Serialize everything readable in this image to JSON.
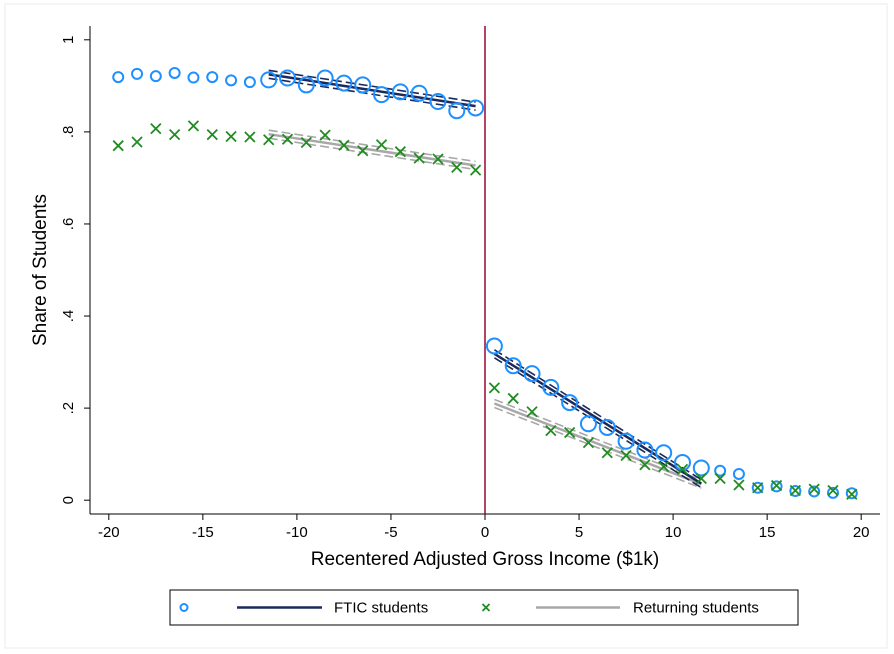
{
  "chart_data": {
    "type": "scatter",
    "title": "",
    "xlabel": "Recentered Adjusted Gross Income ($1k)",
    "ylabel": "Share of Students",
    "xlim": [
      -21,
      21
    ],
    "ylim": [
      -0.03,
      1.03
    ],
    "x_ticks": [
      -20,
      -15,
      -10,
      -5,
      0,
      5,
      10,
      15,
      20
    ],
    "x_tick_labels": [
      "-20",
      "-15",
      "-10",
      "-5",
      "0",
      "5",
      "10",
      "15",
      "20"
    ],
    "y_ticks": [
      0,
      0.2,
      0.4,
      0.6,
      0.8,
      1
    ],
    "y_tick_labels": [
      "0",
      ".2",
      ".4",
      ".6",
      ".8",
      "1"
    ],
    "grid": false,
    "cutoff_x": 0,
    "legend_position": "bottom",
    "colors": {
      "ftic": "#1e90ff",
      "returning": "#228b22",
      "ftic_fit": "#1a2a5a",
      "returning_fit": "#a8a8a8",
      "cutoff": "#a0153e"
    },
    "series": [
      {
        "name": "FTIC students",
        "marker": "circle",
        "points": [
          [
            -19.5,
            0.919
          ],
          [
            -18.5,
            0.926
          ],
          [
            -17.5,
            0.921
          ],
          [
            -16.5,
            0.928
          ],
          [
            -15.5,
            0.918
          ],
          [
            -14.5,
            0.919
          ],
          [
            -13.5,
            0.912
          ],
          [
            -12.5,
            0.908
          ],
          [
            -11.5,
            0.913
          ],
          [
            -10.5,
            0.917
          ],
          [
            -9.5,
            0.902
          ],
          [
            -8.5,
            0.917
          ],
          [
            -7.5,
            0.906
          ],
          [
            -6.5,
            0.902
          ],
          [
            -5.5,
            0.881
          ],
          [
            -4.5,
            0.887
          ],
          [
            -3.5,
            0.884
          ],
          [
            -2.5,
            0.866
          ],
          [
            -1.5,
            0.846
          ],
          [
            -0.5,
            0.852
          ],
          [
            0.5,
            0.335
          ],
          [
            1.5,
            0.292
          ],
          [
            2.5,
            0.275
          ],
          [
            3.5,
            0.245
          ],
          [
            4.5,
            0.212
          ],
          [
            5.5,
            0.166
          ],
          [
            6.5,
            0.158
          ],
          [
            7.5,
            0.128
          ],
          [
            8.5,
            0.109
          ],
          [
            9.5,
            0.103
          ],
          [
            10.5,
            0.082
          ],
          [
            11.5,
            0.07
          ],
          [
            12.5,
            0.064
          ],
          [
            13.5,
            0.057
          ],
          [
            14.5,
            0.027
          ],
          [
            15.5,
            0.03
          ],
          [
            16.5,
            0.02
          ],
          [
            17.5,
            0.019
          ],
          [
            18.5,
            0.016
          ],
          [
            19.5,
            0.015
          ]
        ],
        "fit_left": {
          "x": [
            -11.5,
            -0.5
          ],
          "y": [
            0.925,
            0.856
          ]
        },
        "fit_right": {
          "x": [
            0.5,
            11.5
          ],
          "y": [
            0.318,
            0.036
          ]
        }
      },
      {
        "name": "Returning students",
        "marker": "x",
        "points": [
          [
            -19.5,
            0.77
          ],
          [
            -18.5,
            0.778
          ],
          [
            -17.5,
            0.807
          ],
          [
            -16.5,
            0.794
          ],
          [
            -15.5,
            0.813
          ],
          [
            -14.5,
            0.794
          ],
          [
            -13.5,
            0.79
          ],
          [
            -12.5,
            0.789
          ],
          [
            -11.5,
            0.783
          ],
          [
            -10.5,
            0.784
          ],
          [
            -9.5,
            0.777
          ],
          [
            -8.5,
            0.793
          ],
          [
            -7.5,
            0.771
          ],
          [
            -6.5,
            0.759
          ],
          [
            -5.5,
            0.772
          ],
          [
            -4.5,
            0.757
          ],
          [
            -3.5,
            0.743
          ],
          [
            -2.5,
            0.741
          ],
          [
            -1.5,
            0.723
          ],
          [
            -0.5,
            0.717
          ],
          [
            0.5,
            0.244
          ],
          [
            1.5,
            0.221
          ],
          [
            2.5,
            0.192
          ],
          [
            3.5,
            0.151
          ],
          [
            4.5,
            0.147
          ],
          [
            5.5,
            0.125
          ],
          [
            6.5,
            0.103
          ],
          [
            7.5,
            0.097
          ],
          [
            8.5,
            0.077
          ],
          [
            9.5,
            0.073
          ],
          [
            10.5,
            0.067
          ],
          [
            11.5,
            0.047
          ],
          [
            12.5,
            0.047
          ],
          [
            13.5,
            0.033
          ],
          [
            14.5,
            0.027
          ],
          [
            15.5,
            0.032
          ],
          [
            16.5,
            0.021
          ],
          [
            17.5,
            0.024
          ],
          [
            18.5,
            0.021
          ],
          [
            19.5,
            0.013
          ]
        ],
        "fit_left": {
          "x": [
            -11.5,
            -0.5
          ],
          "y": [
            0.795,
            0.727
          ]
        },
        "fit_right": {
          "x": [
            0.5,
            11.5
          ],
          "y": [
            0.21,
            0.035
          ]
        }
      }
    ]
  }
}
